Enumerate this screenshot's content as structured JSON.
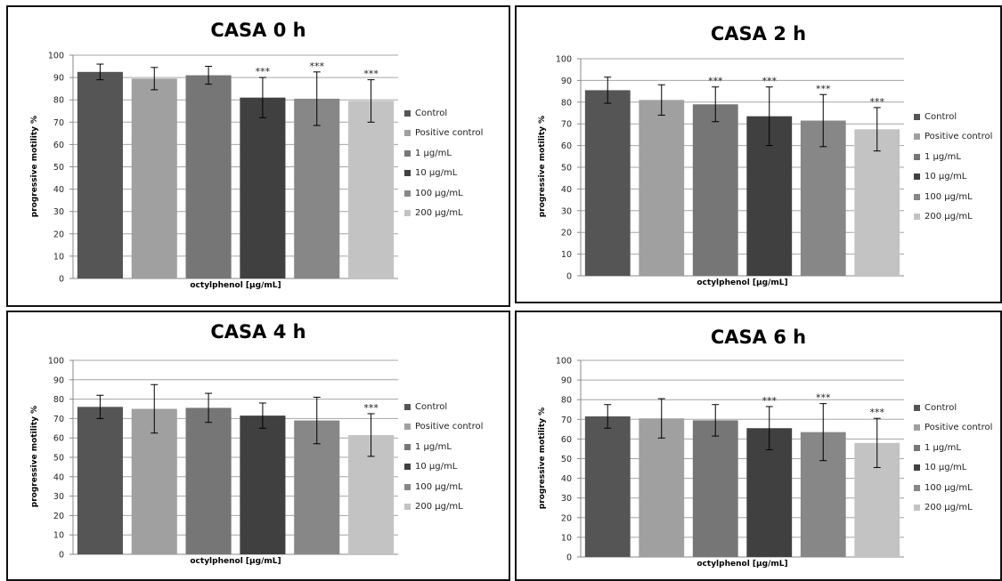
{
  "chart_data": [
    {
      "type": "bar",
      "title": "CASA 0 h",
      "xlabel": "octylphenol  [µg/mL]",
      "ylabel": "progressive motility %",
      "ylim": [
        0,
        100
      ],
      "yticks": [
        "0",
        "10",
        "20",
        "30",
        "40",
        "50",
        "60",
        "70",
        "80",
        "90",
        "100"
      ],
      "grid": true,
      "legend_position": "right",
      "series": [
        {
          "name": "Control",
          "value": 92.5,
          "error": 3.5,
          "significance": ""
        },
        {
          "name": "Positive control",
          "value": 89.5,
          "error": 5,
          "significance": ""
        },
        {
          "name": "1 µg/mL",
          "value": 91,
          "error": 4,
          "significance": ""
        },
        {
          "name": "10 µg/mL",
          "value": 81,
          "error": 9,
          "significance": "***"
        },
        {
          "name": "100 µg/mL",
          "value": 80.5,
          "error": 12,
          "significance": "***"
        },
        {
          "name": "200 µg/mL",
          "value": 79.5,
          "error": 9.5,
          "significance": "***"
        }
      ]
    },
    {
      "type": "bar",
      "title": "CASA 2 h",
      "xlabel": "octylphenol  [µg/mL]",
      "ylabel": "progressive motility %",
      "ylim": [
        0,
        100
      ],
      "yticks": [
        "0",
        "10",
        "20",
        "30",
        "40",
        "50",
        "60",
        "70",
        "80",
        "90",
        "100"
      ],
      "grid": true,
      "legend_position": "right",
      "series": [
        {
          "name": "Control",
          "value": 85.5,
          "error": 6,
          "significance": ""
        },
        {
          "name": "Positive control",
          "value": 81,
          "error": 7,
          "significance": ""
        },
        {
          "name": "1 µg/mL",
          "value": 79,
          "error": 8,
          "significance": "***"
        },
        {
          "name": "10 µg/mL",
          "value": 73.5,
          "error": 13.5,
          "significance": "***"
        },
        {
          "name": "100 µg/mL",
          "value": 71.5,
          "error": 12,
          "significance": "***"
        },
        {
          "name": "200 µg/mL",
          "value": 67.5,
          "error": 10,
          "significance": "***"
        }
      ]
    },
    {
      "type": "bar",
      "title": "CASA 4 h",
      "xlabel": "octylphenol  [µg/mL]",
      "ylabel": "progressive motility %",
      "ylim": [
        0,
        100
      ],
      "yticks": [
        "0",
        "10",
        "20",
        "30",
        "40",
        "50",
        "60",
        "70",
        "80",
        "90",
        "100"
      ],
      "grid": true,
      "legend_position": "right",
      "series": [
        {
          "name": "Control",
          "value": 76,
          "error": 6,
          "significance": ""
        },
        {
          "name": "Positive control",
          "value": 75,
          "error": 12.5,
          "significance": ""
        },
        {
          "name": "1 µg/mL",
          "value": 75.5,
          "error": 7.5,
          "significance": ""
        },
        {
          "name": "10 µg/mL",
          "value": 71.5,
          "error": 6.5,
          "significance": ""
        },
        {
          "name": "100 µg/mL",
          "value": 69,
          "error": 12,
          "significance": ""
        },
        {
          "name": "200 µg/mL",
          "value": 61.5,
          "error": 11,
          "significance": "***"
        }
      ]
    },
    {
      "type": "bar",
      "title": "CASA 6 h",
      "xlabel": "octylphenol  [µg/mL]",
      "ylabel": "progressive motility %",
      "ylim": [
        0,
        100
      ],
      "yticks": [
        "0",
        "10",
        "20",
        "30",
        "40",
        "50",
        "60",
        "70",
        "80",
        "90",
        "100"
      ],
      "grid": true,
      "legend_position": "right",
      "series": [
        {
          "name": "Control",
          "value": 71.5,
          "error": 6,
          "significance": ""
        },
        {
          "name": "Positive control",
          "value": 70.5,
          "error": 10,
          "significance": ""
        },
        {
          "name": "1 µg/mL",
          "value": 69.5,
          "error": 8,
          "significance": ""
        },
        {
          "name": "10 µg/mL",
          "value": 65.5,
          "error": 11,
          "significance": "***"
        },
        {
          "name": "100 µg/mL",
          "value": 63.5,
          "error": 14.5,
          "significance": "***"
        },
        {
          "name": "200 µg/mL",
          "value": 58,
          "error": 12.5,
          "significance": "***"
        }
      ]
    }
  ],
  "series_colors": [
    "#555555",
    "#a0a0a0",
    "#767676",
    "#404040",
    "#878787",
    "#c3c3c3"
  ],
  "grid_color": "#a6a6a6",
  "axis_color": "#888888"
}
